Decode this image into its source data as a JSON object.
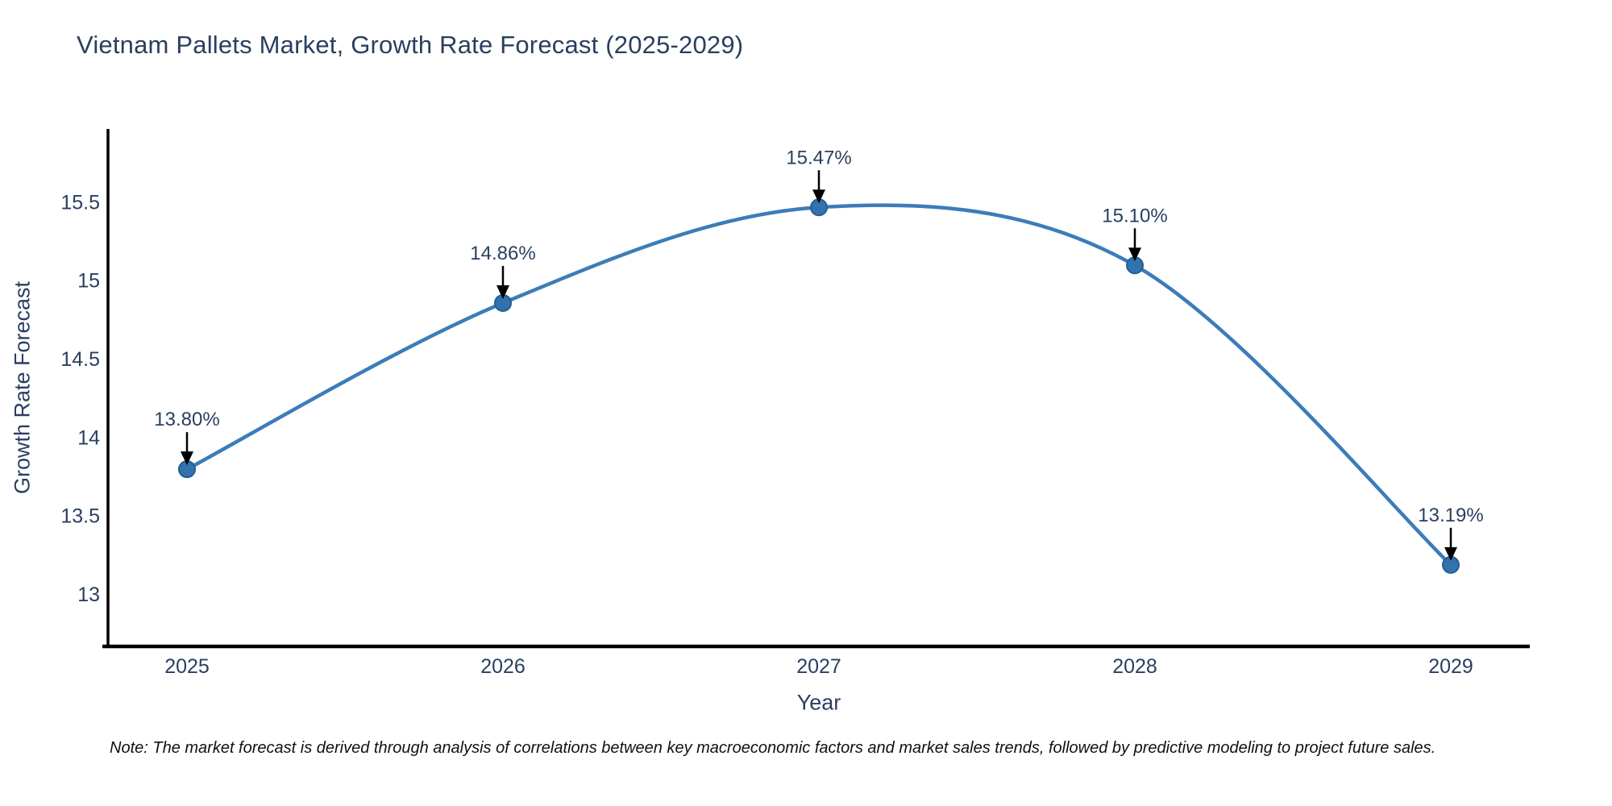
{
  "chart": {
    "title": "Vietnam Pallets Market, Growth Rate Forecast (2025-2029)",
    "note": "Note: The market forecast is derived through analysis of correlations between key macroeconomic factors and market sales trends, followed by predictive modeling to project future sales."
  },
  "chart_data": {
    "type": "line",
    "x": [
      2025,
      2026,
      2027,
      2028,
      2029
    ],
    "series": [
      {
        "name": "Growth Rate Forecast",
        "values": [
          13.8,
          14.86,
          15.47,
          15.1,
          13.19
        ]
      }
    ],
    "point_labels": [
      "13.80%",
      "14.86%",
      "15.47%",
      "15.10%",
      "13.19%"
    ],
    "title": "Vietnam Pallets Market, Growth Rate Forecast (2025-2029)",
    "xlabel": "Year",
    "ylabel": "Growth Rate Forecast",
    "xticks": [
      "2025",
      "2026",
      "2027",
      "2028",
      "2029"
    ],
    "yticks": [
      13,
      13.5,
      14,
      14.5,
      15,
      15.5
    ],
    "xlim": [
      2024.75,
      2029.25
    ],
    "ylim": [
      12.67,
      15.97
    ],
    "line_shape": "spline",
    "grid": false,
    "legend": "none",
    "colors": {
      "line": "#3c7cb9",
      "marker": "#3173ae",
      "marker_edge": "#265e92",
      "axis": "#000000",
      "text": "#2a3f5f",
      "annotation": "#2a3f5f",
      "arrow": "#000000",
      "background": "#ffffff"
    }
  }
}
